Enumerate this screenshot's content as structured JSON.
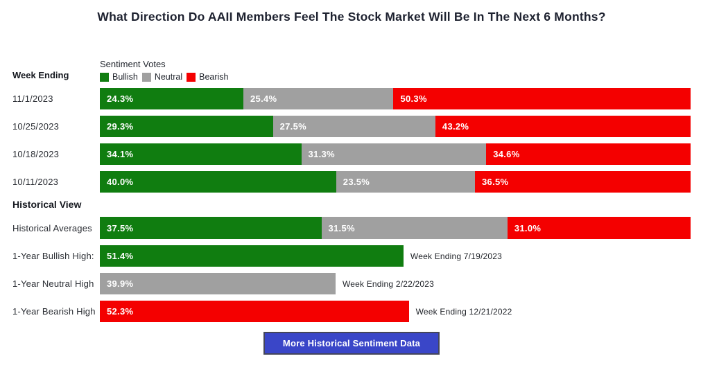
{
  "title": "What Direction Do AAII Members Feel The Stock Market Will Be In The Next 6 Months?",
  "left_header": "Week Ending",
  "legend": {
    "title": "Sentiment Votes",
    "items": [
      {
        "label": "Bullish",
        "key": "bullish"
      },
      {
        "label": "Neutral",
        "key": "neutral"
      },
      {
        "label": "Bearish",
        "key": "bearish"
      }
    ]
  },
  "colors": {
    "bullish": "#107d10",
    "neutral": "#a0a0a0",
    "bearish": "#f40000",
    "button_bg": "#3a46c8",
    "button_border": "#44455a"
  },
  "chart_data": {
    "type": "bar",
    "orientation": "horizontal-stacked",
    "unit": "%",
    "xlim": [
      0,
      100
    ],
    "series_names": [
      "Bullish",
      "Neutral",
      "Bearish"
    ],
    "weekly": [
      {
        "week": "11/1/2023",
        "bullish": 24.3,
        "neutral": 25.4,
        "bearish": 50.3
      },
      {
        "week": "10/25/2023",
        "bullish": 29.3,
        "neutral": 27.5,
        "bearish": 43.2
      },
      {
        "week": "10/18/2023",
        "bullish": 34.1,
        "neutral": 31.3,
        "bearish": 34.6
      },
      {
        "week": "10/11/2023",
        "bullish": 40.0,
        "neutral": 23.5,
        "bearish": 36.5
      }
    ],
    "historical": {
      "heading": "Historical View",
      "averages": {
        "label": "Historical Averages",
        "bullish": 37.5,
        "neutral": 31.5,
        "bearish": 31.0
      },
      "highs": [
        {
          "label": "1-Year Bullish High:",
          "series": "bullish",
          "value": 51.4,
          "note": "Week Ending 7/19/2023"
        },
        {
          "label": "1-Year Neutral High",
          "series": "neutral",
          "value": 39.9,
          "note": "Week Ending 2/22/2023"
        },
        {
          "label": "1-Year Bearish High",
          "series": "bearish",
          "value": 52.3,
          "note": "Week Ending 12/21/2022"
        }
      ]
    }
  },
  "button": {
    "label": "More Historical Sentiment Data"
  }
}
